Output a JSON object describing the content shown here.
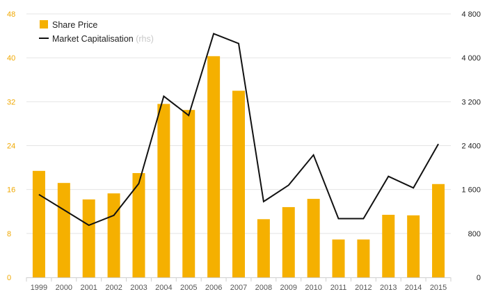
{
  "chart_data": {
    "type": "bar+line",
    "categories": [
      "1999",
      "2000",
      "2001",
      "2002",
      "2003",
      "2004",
      "2005",
      "2006",
      "2007",
      "2008",
      "2009",
      "2010",
      "2011",
      "2012",
      "2013",
      "2014",
      "2015"
    ],
    "series": [
      {
        "name": "Share Price",
        "kind": "bar",
        "axis": "left",
        "color": "#f5b000",
        "values": [
          19.4,
          17.2,
          14.2,
          15.3,
          19.0,
          31.6,
          30.5,
          40.3,
          34.0,
          10.6,
          12.8,
          14.3,
          6.9,
          6.9,
          11.4,
          11.3,
          17.0
        ]
      },
      {
        "name": "Market Capitalisation",
        "kind": "line",
        "axis": "right",
        "color": "#111111",
        "values": [
          1510,
          1230,
          950,
          1130,
          1710,
          3300,
          2950,
          4440,
          4260,
          1380,
          1680,
          2230,
          1070,
          1070,
          1840,
          1630,
          2430
        ]
      }
    ],
    "y_left": {
      "min": 0,
      "max": 48,
      "ticks": [
        "0",
        "8",
        "16",
        "24",
        "32",
        "40",
        "48"
      ],
      "color": "#f0a800"
    },
    "y_right": {
      "min": 0,
      "max": 4800,
      "ticks": [
        "0",
        "800",
        "1 600",
        "2 400",
        "3 200",
        "4 000",
        "4 800"
      ],
      "color": "#222222"
    },
    "legend": {
      "position": "top-left",
      "items": [
        {
          "label": "Share Price",
          "symbol": "square",
          "color": "#f5b000"
        },
        {
          "label": "Market Capitalisation",
          "suffix": "(rhs)",
          "symbol": "line",
          "color": "#111111"
        }
      ]
    },
    "grid": {
      "horizontal": true,
      "color": "#e4e4e4"
    }
  }
}
